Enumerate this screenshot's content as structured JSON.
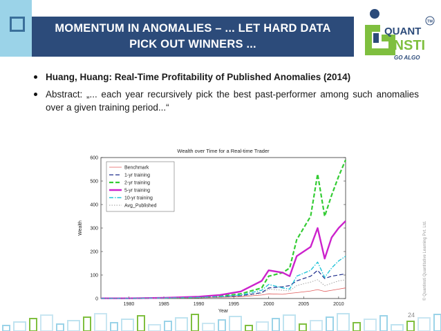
{
  "header": {
    "title_line1": "MOMENTUM IN ANOMALIES – ... LET HARD DATA",
    "title_line2": "PICK OUT WINNERS ..."
  },
  "logo": {
    "line1": "QUANT",
    "line2": "INSTI",
    "tagline": "GO ALGO",
    "tm": "TM"
  },
  "bullets": [
    {
      "text": "Huang, Huang: Real-Time Profitability of Published Anomalies (2014)"
    },
    {
      "text": "Abstract: „... each year recursively pick the best past-performer among such anomalies over a given training period...“"
    }
  ],
  "chart_data": {
    "type": "line",
    "title": "Wealth over Time for a Real-time Trader",
    "xlabel": "Year",
    "ylabel": "Wealth",
    "xlim": [
      1976,
      2011
    ],
    "ylim": [
      0,
      600
    ],
    "xticks": [
      "1980",
      "1985",
      "1990",
      "1995",
      "2000",
      "2005",
      "2010"
    ],
    "yticks": [
      "0",
      "100",
      "200",
      "300",
      "400",
      "500",
      "600"
    ],
    "legend_position": "top-left",
    "x": [
      1976,
      1980,
      1985,
      1990,
      1993,
      1996,
      1999,
      2000,
      2002,
      2003,
      2004,
      2006,
      2007,
      2008,
      2009,
      2010,
      2011
    ],
    "series": [
      {
        "name": "Benchmark",
        "color": "#e05a5a",
        "style": "solid",
        "values": [
          1,
          1,
          2,
          3,
          5,
          8,
          15,
          20,
          18,
          22,
          25,
          32,
          38,
          30,
          35,
          40,
          45
        ]
      },
      {
        "name": "1-yr training",
        "color": "#1a2a8a",
        "style": "dashed",
        "values": [
          1,
          1,
          2,
          4,
          7,
          12,
          25,
          45,
          50,
          55,
          75,
          95,
          120,
          85,
          95,
          100,
          105
        ]
      },
      {
        "name": "2-yr training",
        "color": "#33cc33",
        "style": "dashed",
        "values": [
          1,
          1,
          2,
          5,
          10,
          20,
          45,
          95,
          110,
          130,
          250,
          350,
          530,
          350,
          440,
          520,
          590
        ]
      },
      {
        "name": "5-yr training",
        "color": "#cc22cc",
        "style": "solid",
        "values": [
          1,
          1,
          3,
          8,
          15,
          30,
          75,
          120,
          110,
          95,
          180,
          220,
          300,
          170,
          260,
          300,
          330
        ]
      },
      {
        "name": "10-yr training",
        "color": "#22c4d8",
        "style": "dashdot",
        "values": [
          1,
          1,
          2,
          5,
          8,
          15,
          35,
          60,
          45,
          40,
          95,
          120,
          155,
          90,
          130,
          160,
          180
        ]
      },
      {
        "name": "Avg_Published",
        "color": "#999999",
        "style": "dotted",
        "values": [
          1,
          1,
          2,
          4,
          6,
          10,
          22,
          40,
          35,
          32,
          55,
          70,
          80,
          55,
          65,
          75,
          80
        ]
      }
    ]
  },
  "footer": {
    "page_number": "24",
    "copyright": "© Quantinsti Quantitative Learning Pvt. Ltd."
  }
}
